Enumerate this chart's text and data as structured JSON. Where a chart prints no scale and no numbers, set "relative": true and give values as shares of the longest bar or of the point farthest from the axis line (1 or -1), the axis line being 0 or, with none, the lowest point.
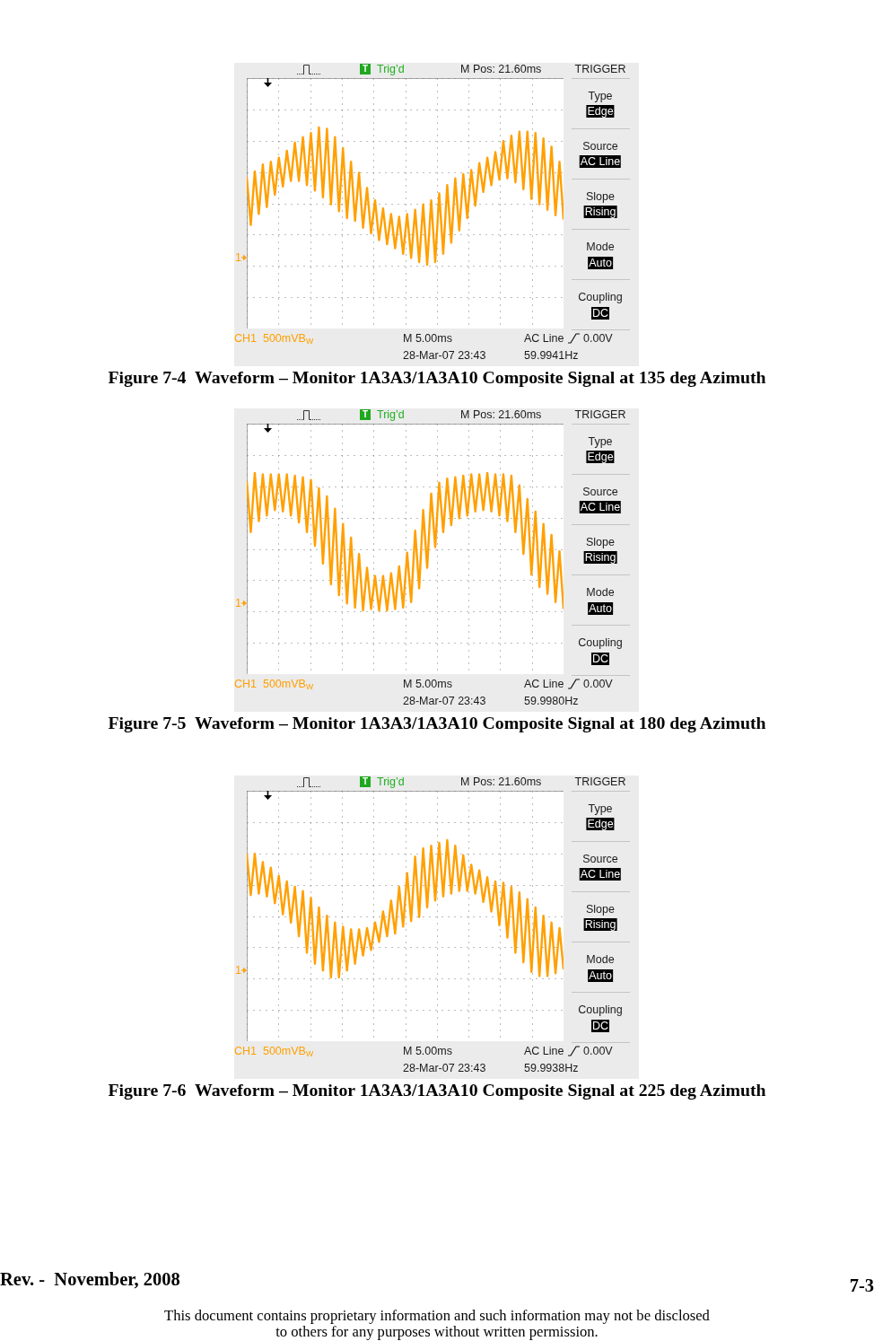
{
  "chart_data": [
    {
      "type": "line",
      "title": "Figure 7-4  Waveform – Monitor 1A3A3/1A3A10 Composite Signal at 135 deg Azimuth",
      "relative": true,
      "grid": true,
      "color": "#ffa000",
      "categories": [
        null,
        null,
        null,
        null,
        null,
        null,
        null,
        null,
        null,
        null,
        null,
        null,
        null,
        null,
        null,
        null,
        null,
        null,
        null,
        null,
        null,
        null,
        null,
        null,
        null,
        null,
        null,
        null,
        null,
        null,
        null,
        null,
        null,
        null,
        null,
        null,
        null,
        null,
        null,
        null,
        null,
        null,
        null,
        null,
        null,
        null,
        null,
        null,
        null,
        null,
        null,
        null,
        null,
        null,
        null,
        null,
        null,
        null,
        null,
        null,
        null,
        null,
        null,
        null,
        null,
        null,
        null,
        null,
        null,
        null,
        null,
        null,
        null,
        null,
        null,
        null,
        null,
        null,
        null,
        null
      ],
      "values": [
        0.64,
        0.29,
        0.68,
        0.37,
        0.73,
        0.42,
        0.75,
        0.51,
        0.78,
        0.57,
        0.83,
        0.61,
        0.89,
        0.61,
        0.93,
        0.58,
        0.96,
        0.54,
        1.0,
        0.49,
        0.99,
        0.44,
        0.93,
        0.39,
        0.85,
        0.34,
        0.75,
        0.32,
        0.67,
        0.27,
        0.56,
        0.23,
        0.47,
        0.18,
        0.41,
        0.15,
        0.37,
        0.12,
        0.35,
        0.08,
        0.37,
        0.05,
        0.4,
        0.02,
        0.44,
        0.0,
        0.47,
        0.02,
        0.52,
        0.08,
        0.58,
        0.16,
        0.63,
        0.25,
        0.66,
        0.34,
        0.69,
        0.43,
        0.74,
        0.53,
        0.78,
        0.58,
        0.82,
        0.62,
        0.9,
        0.63,
        0.94,
        0.6,
        0.97,
        0.55,
        0.97,
        0.48,
        0.96,
        0.44,
        0.92,
        0.4,
        0.86,
        0.36,
        0.75,
        0.33
      ],
      "annotations": [
        "T",
        "Trig’d",
        "M Pos: 21.60ms",
        "TRIGGER",
        "Type",
        "Edge",
        "Source",
        "AC Line",
        "Slope",
        "Rising",
        "Mode",
        "Auto",
        "Coupling",
        "DC",
        "1",
        "CH1  500mVB$_{W}$",
        "M 5.00ms",
        "AC Line",
        "0.00V",
        "28-Mar-07 23:43",
        "59.9941Hz"
      ]
    },
    {
      "type": "line",
      "title": "Figure 7-5  Waveform – Monitor 1A3A3/1A3A10 Composite Signal at 180 deg Azimuth",
      "relative": true,
      "grid": true,
      "color": "#ffa000",
      "categories": [
        null,
        null,
        null,
        null,
        null,
        null,
        null,
        null,
        null,
        null,
        null,
        null,
        null,
        null,
        null,
        null,
        null,
        null,
        null,
        null,
        null,
        null,
        null,
        null,
        null,
        null,
        null,
        null,
        null,
        null,
        null,
        null,
        null,
        null,
        null,
        null,
        null,
        null,
        null,
        null,
        null,
        null,
        null,
        null,
        null,
        null,
        null,
        null,
        null,
        null,
        null,
        null,
        null,
        null,
        null,
        null,
        null,
        null,
        null,
        null,
        null,
        null,
        null,
        null,
        null,
        null,
        null,
        null,
        null,
        null,
        null,
        null,
        null,
        null,
        null,
        null,
        null,
        null,
        null,
        null
      ],
      "values": [
        0.94,
        0.57,
        1.0,
        0.65,
        0.99,
        0.69,
        0.99,
        0.73,
        0.99,
        0.72,
        0.99,
        0.69,
        0.98,
        0.64,
        0.97,
        0.57,
        0.95,
        0.47,
        0.89,
        0.34,
        0.83,
        0.19,
        0.74,
        0.11,
        0.63,
        0.05,
        0.53,
        0.02,
        0.41,
        0.0,
        0.31,
        0.01,
        0.25,
        0.0,
        0.25,
        0.0,
        0.27,
        0.01,
        0.32,
        0.02,
        0.42,
        0.06,
        0.58,
        0.16,
        0.73,
        0.31,
        0.85,
        0.46,
        0.93,
        0.57,
        0.96,
        0.62,
        0.97,
        0.67,
        0.98,
        0.69,
        0.99,
        0.72,
        0.99,
        0.73,
        1.0,
        0.72,
        0.99,
        0.69,
        0.99,
        0.65,
        0.98,
        0.57,
        0.91,
        0.41,
        0.81,
        0.26,
        0.72,
        0.17,
        0.63,
        0.12,
        0.55,
        0.06,
        0.43,
        0.01
      ],
      "annotations": [
        "T",
        "Trig’d",
        "M Pos: 21.60ms",
        "TRIGGER",
        "Type",
        "Edge",
        "Source",
        "AC Line",
        "Slope",
        "Rising",
        "Mode",
        "Auto",
        "Coupling",
        "DC",
        "1",
        "CH1  500mVB$_{W}$",
        "M 5.00ms",
        "AC Line",
        "0.00V",
        "28-Mar-07 23:43",
        "59.9980Hz"
      ]
    },
    {
      "type": "line",
      "title": "Figure 7-6  Waveform – Monitor 1A3A3/1A3A10 Composite Signal at 225 deg Azimuth",
      "relative": true,
      "grid": true,
      "color": "#ffa000",
      "categories": [
        null,
        null,
        null,
        null,
        null,
        null,
        null,
        null,
        null,
        null,
        null,
        null,
        null,
        null,
        null,
        null,
        null,
        null,
        null,
        null,
        null,
        null,
        null,
        null,
        null,
        null,
        null,
        null,
        null,
        null,
        null,
        null,
        null,
        null,
        null,
        null,
        null,
        null,
        null,
        null,
        null,
        null,
        null,
        null,
        null,
        null,
        null,
        null,
        null,
        null,
        null,
        null,
        null,
        null,
        null,
        null,
        null,
        null,
        null,
        null,
        null,
        null,
        null,
        null,
        null,
        null,
        null,
        null,
        null,
        null,
        null,
        null,
        null,
        null,
        null,
        null,
        null,
        null,
        null,
        null
      ],
      "values": [
        0.9,
        0.6,
        0.9,
        0.61,
        0.84,
        0.59,
        0.8,
        0.54,
        0.74,
        0.46,
        0.7,
        0.4,
        0.66,
        0.3,
        0.63,
        0.18,
        0.58,
        0.1,
        0.51,
        0.05,
        0.45,
        0.0,
        0.4,
        0.0,
        0.37,
        0.05,
        0.35,
        0.1,
        0.35,
        0.16,
        0.36,
        0.2,
        0.4,
        0.26,
        0.48,
        0.3,
        0.56,
        0.32,
        0.66,
        0.37,
        0.76,
        0.41,
        0.88,
        0.44,
        0.94,
        0.51,
        0.96,
        0.56,
        0.98,
        0.59,
        1.0,
        0.61,
        0.96,
        0.63,
        0.89,
        0.63,
        0.82,
        0.61,
        0.78,
        0.55,
        0.73,
        0.48,
        0.7,
        0.38,
        0.69,
        0.29,
        0.66,
        0.18,
        0.62,
        0.11,
        0.57,
        0.04,
        0.51,
        0.01,
        0.45,
        0.01,
        0.4,
        0.03,
        0.36,
        0.06
      ],
      "annotations": [
        "T",
        "Trig’d",
        "M Pos: 21.60ms",
        "TRIGGER",
        "Type",
        "Edge",
        "Source",
        "AC Line",
        "Slope",
        "Rising",
        "Mode",
        "Auto",
        "Coupling",
        "DC",
        "1",
        "CH1  500mVB$_{W}$",
        "M 5.00ms",
        "AC Line",
        "0.00V",
        "28-Mar-07 23:43",
        "59.9938Hz",
        "Rev. -  November, 2008",
        "7-3",
        "This document contains proprietary information and such information may not be disclosed",
        "to others for any purposes without written permission."
      ]
    }
  ]
}
